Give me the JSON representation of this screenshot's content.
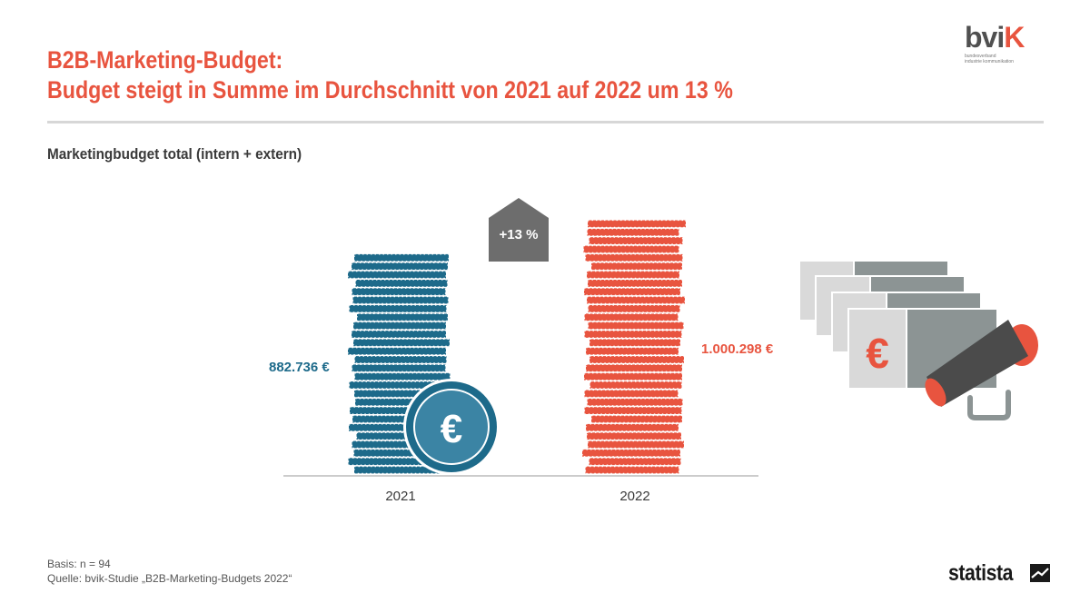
{
  "header": {
    "title_line1": "B2B-Marketing-Budget:",
    "title_line2": "Budget steigt in Summe im Durchschnitt von 2021 auf 2022 um 13 %",
    "subtitle": "Marketingbudget total (intern + extern)"
  },
  "logo": {
    "part1": "bvi",
    "part2": "K",
    "tag_line1": "bundesverband",
    "tag_line2": "industrie kommunikation"
  },
  "chart_data": {
    "type": "bar",
    "categories": [
      "2021",
      "2022"
    ],
    "values": [
      882736,
      1000298
    ],
    "value_labels": [
      "882.736 €",
      "1.000.298 €"
    ],
    "colors": [
      "#1d6a8a",
      "#e8543f"
    ],
    "change_label": "+13 %",
    "ylim": [
      0,
      1000298
    ]
  },
  "icons": {
    "coin_symbol": "€",
    "bill_symbol": "€",
    "coin_icon": "euro-coin-icon",
    "money_icon": "megaphone-money-icon"
  },
  "footer": {
    "basis": "Basis: n = 94",
    "source": "Quelle: bvik-Studie „B2B-Marketing-Budgets 2022“"
  },
  "brand": {
    "statista": "statista"
  }
}
